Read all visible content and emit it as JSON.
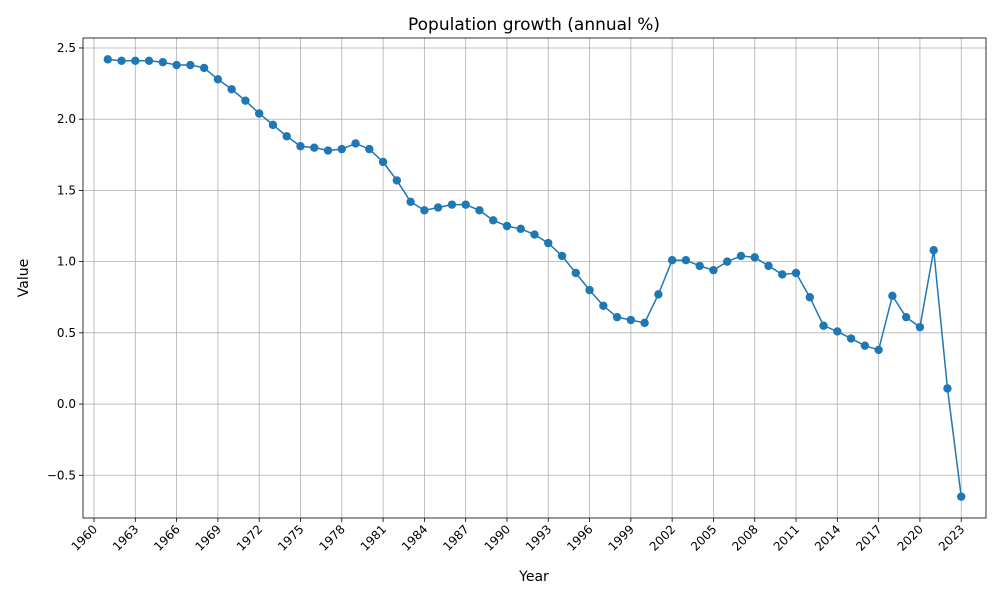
{
  "chart_data": {
    "type": "line",
    "title": "Population growth (annual %)",
    "xlabel": "Year",
    "ylabel": "Value",
    "xlim": [
      1959.2,
      2024.8
    ],
    "ylim": [
      -0.8,
      2.57
    ],
    "x_ticks": [
      1960,
      1963,
      1966,
      1969,
      1972,
      1975,
      1978,
      1981,
      1984,
      1987,
      1990,
      1993,
      1996,
      1999,
      2002,
      2005,
      2008,
      2011,
      2014,
      2017,
      2020,
      2023
    ],
    "y_ticks": [
      -0.5,
      0.0,
      0.5,
      1.0,
      1.5,
      2.0,
      2.5
    ],
    "y_tick_labels": [
      "−0.5",
      "0.0",
      "0.5",
      "1.0",
      "1.5",
      "2.0",
      "2.5"
    ],
    "grid": true,
    "color": "#1f77b4",
    "marker": "circle",
    "series": [
      {
        "x": [
          1961,
          1962,
          1963,
          1964,
          1965,
          1966,
          1967,
          1968,
          1969,
          1970,
          1971,
          1972,
          1973,
          1974,
          1975,
          1976,
          1977,
          1978,
          1979,
          1980,
          1981,
          1982,
          1983,
          1984,
          1985,
          1986,
          1987,
          1988,
          1989,
          1990,
          1991,
          1992,
          1993,
          1994,
          1995,
          1996,
          1997,
          1998,
          1999,
          2000,
          2001,
          2002,
          2003,
          2004,
          2005,
          2006,
          2007,
          2008,
          2009,
          2010,
          2011,
          2012,
          2013,
          2014,
          2015,
          2016,
          2017,
          2018,
          2019,
          2020,
          2021,
          2022,
          2023
        ],
        "values": [
          2.42,
          2.41,
          2.41,
          2.41,
          2.4,
          2.38,
          2.38,
          2.36,
          2.28,
          2.21,
          2.13,
          2.04,
          1.96,
          1.88,
          1.81,
          1.8,
          1.78,
          1.79,
          1.83,
          1.79,
          1.7,
          1.57,
          1.42,
          1.36,
          1.38,
          1.4,
          1.4,
          1.36,
          1.29,
          1.25,
          1.23,
          1.19,
          1.13,
          1.04,
          0.92,
          0.8,
          0.69,
          0.61,
          0.59,
          0.57,
          0.77,
          1.01,
          1.01,
          0.97,
          0.94,
          1.0,
          1.04,
          1.03,
          0.97,
          0.91,
          0.92,
          0.75,
          0.55,
          0.51,
          0.46,
          0.41,
          0.38,
          0.76,
          0.61,
          0.54,
          1.08,
          0.11,
          -0.65
        ]
      }
    ]
  }
}
